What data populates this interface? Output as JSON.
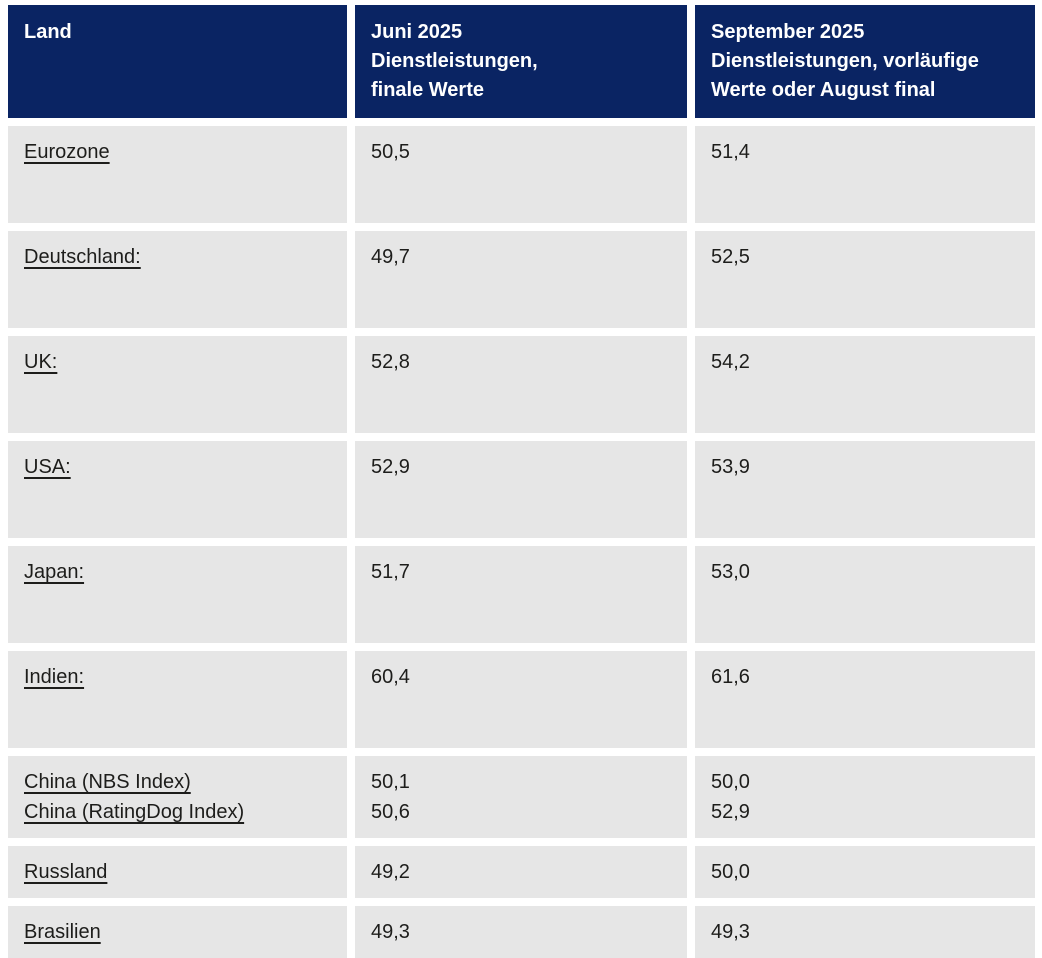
{
  "table": {
    "headers": [
      {
        "id": "land",
        "label": "Land"
      },
      {
        "id": "juni",
        "label": "Juni 2025\nDienstleistungen,\nfinale Werte"
      },
      {
        "id": "september",
        "label": "September 2025\nDienstleistungen, vorläufige\nWerte oder August final"
      }
    ],
    "rows": [
      {
        "land": [
          "Eurozone"
        ],
        "juni": [
          "50,5"
        ],
        "september": [
          "51,4"
        ]
      },
      {
        "land": [
          "Deutschland:"
        ],
        "juni": [
          "49,7"
        ],
        "september": [
          "52,5"
        ]
      },
      {
        "land": [
          "UK:"
        ],
        "juni": [
          "52,8"
        ],
        "september": [
          "54,2"
        ]
      },
      {
        "land": [
          "USA:"
        ],
        "juni": [
          "52,9"
        ],
        "september": [
          "53,9"
        ]
      },
      {
        "land": [
          "Japan:"
        ],
        "juni": [
          "51,7"
        ],
        "september": [
          "53,0"
        ]
      },
      {
        "land": [
          "Indien:"
        ],
        "juni": [
          "60,4"
        ],
        "september": [
          "61,6"
        ]
      },
      {
        "land": [
          "China (NBS Index)",
          "China (RatingDog Index)"
        ],
        "juni": [
          "50,1",
          "50,6"
        ],
        "september": [
          "50,0",
          "52,9"
        ]
      },
      {
        "land": [
          "Russland"
        ],
        "juni": [
          "49,2"
        ],
        "september": [
          "50,0"
        ]
      },
      {
        "land": [
          "Brasilien"
        ],
        "juni": [
          "49,3"
        ],
        "september": [
          "49,3"
        ]
      }
    ]
  },
  "colors": {
    "header_bg": "#0a2463",
    "header_text": "#ffffff",
    "row_bg": "#e6e6e6",
    "body_text": "#1d1d1b",
    "gap": "#ffffff"
  },
  "chart_data": {
    "type": "table",
    "title": "",
    "columns": [
      "Land",
      "Juni 2025 Dienstleistungen, finale Werte",
      "September 2025 Dienstleistungen, vorläufige Werte oder August final"
    ],
    "rows": [
      [
        "Eurozone",
        50.5,
        51.4
      ],
      [
        "Deutschland",
        49.7,
        52.5
      ],
      [
        "UK",
        52.8,
        54.2
      ],
      [
        "USA",
        52.9,
        53.9
      ],
      [
        "Japan",
        51.7,
        53.0
      ],
      [
        "Indien",
        60.4,
        61.6
      ],
      [
        "China (NBS Index)",
        50.1,
        50.0
      ],
      [
        "China (RatingDog Index)",
        50.6,
        52.9
      ],
      [
        "Russland",
        49.2,
        50.0
      ],
      [
        "Brasilien",
        49.3,
        49.3
      ]
    ],
    "number_format": "decimal-comma",
    "legend_position": "none",
    "grid": false
  }
}
